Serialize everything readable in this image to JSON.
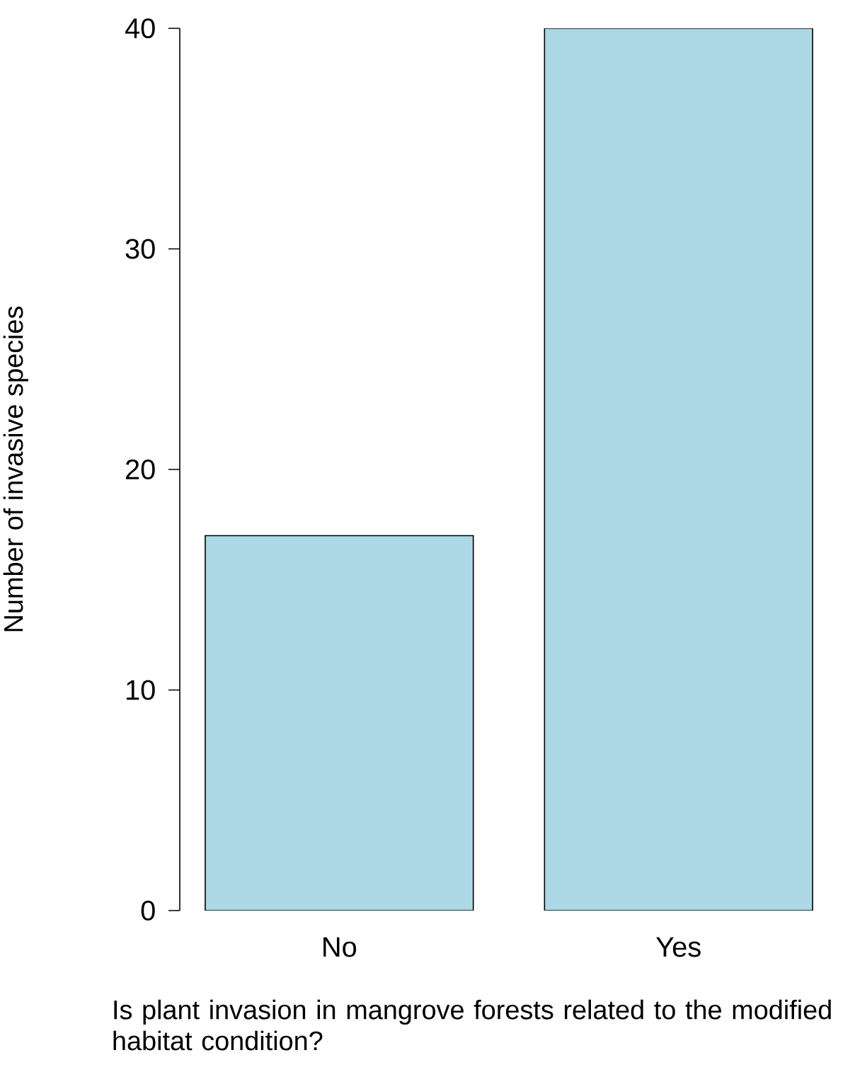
{
  "chart_data": {
    "type": "bar",
    "xlabel": "Is plant invasion in mangrove forests related to the modified habitat condition?",
    "ylabel": "Number of invasive species",
    "categories": [
      "No",
      "Yes"
    ],
    "values": [
      17,
      40
    ],
    "color": "#add8e6",
    "ylim": [
      0,
      40
    ],
    "yticks": [
      0,
      10,
      20,
      30,
      40
    ],
    "grid": false
  }
}
